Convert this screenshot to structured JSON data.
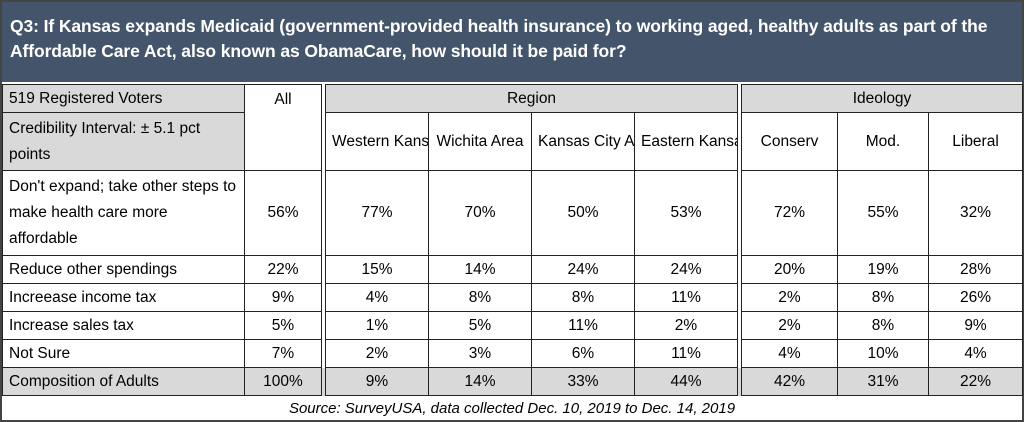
{
  "title": "Q3: If Kansas expands Medicaid (government-provided health insurance) to working aged, healthy adults as part of the Affordable Care Act, also known as ObamaCare, how should it be paid for?",
  "table": {
    "sample_label": "519 Registered Voters",
    "credibility_label": "Credibility Interval: ± 5.1 pct points",
    "all_label": "All",
    "groups": {
      "region": "Region",
      "ideology": "Ideology"
    },
    "columns": {
      "western_kansas": "Western Kansas",
      "wichita_area": "Wichita Area",
      "kansas_city_area": "Kansas City Area",
      "eastern_kansas": "Eastern Kansas",
      "conserv": "Conserv",
      "mod": "Mod.",
      "liberal": "Liberal"
    },
    "rows": [
      {
        "label": "Don't expand; take other steps to make health care more affordable",
        "values": [
          "56%",
          "77%",
          "70%",
          "50%",
          "53%",
          "72%",
          "55%",
          "32%"
        ]
      },
      {
        "label": "Reduce other spendings",
        "values": [
          "22%",
          "15%",
          "14%",
          "24%",
          "24%",
          "20%",
          "19%",
          "28%"
        ]
      },
      {
        "label": "Increease income tax",
        "values": [
          "9%",
          "4%",
          "8%",
          "8%",
          "11%",
          "2%",
          "8%",
          "26%"
        ]
      },
      {
        "label": "Increase sales tax",
        "values": [
          "5%",
          "1%",
          "5%",
          "11%",
          "2%",
          "2%",
          "8%",
          "9%"
        ]
      },
      {
        "label": "Not Sure",
        "values": [
          "7%",
          "2%",
          "3%",
          "6%",
          "11%",
          "4%",
          "10%",
          "4%"
        ]
      }
    ],
    "composition": {
      "label": "Composition of Adults",
      "values": [
        "100%",
        "9%",
        "14%",
        "33%",
        "44%",
        "42%",
        "31%",
        "22%"
      ]
    }
  },
  "source": "Source: SurveyUSA, data collected Dec. 10, 2019 to Dec. 14, 2019"
}
